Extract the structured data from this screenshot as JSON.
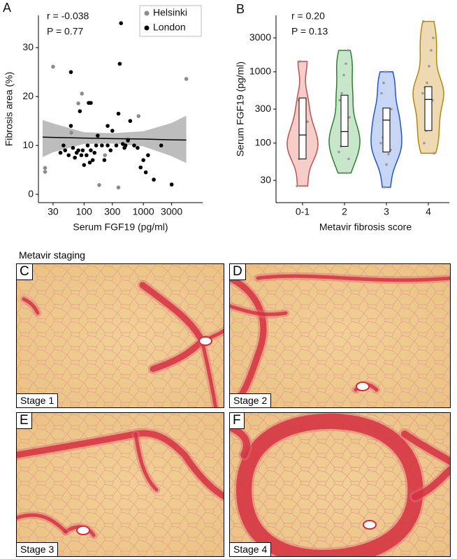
{
  "chart_data": [
    {
      "type": "scatter",
      "panel": "A",
      "x_label": "Serum FGF19 (pg/ml)",
      "y_label": "Fibrosis area (%)",
      "annotations": [
        "r = -0.038",
        "P = 0.77"
      ],
      "log_x": true,
      "xlim": [
        17,
        10000
      ],
      "xticks": [
        30,
        100,
        300,
        1000,
        3000
      ],
      "ylim": [
        -1.7,
        36.6
      ],
      "yticks": [
        0,
        10,
        20,
        30
      ],
      "grid": false,
      "legend": "upper right",
      "series": [
        {
          "name": "Helsinki",
          "color": "#8c8c8c",
          "x": [
            22,
            22,
            30,
            61,
            92,
            80,
            225,
            180,
            380,
            5300,
            830,
            550
          ],
          "y": [
            5.4,
            4.6,
            26.1,
            12.6,
            20.6,
            18.6,
            8,
            1.9,
            1.4,
            23.6,
            16,
            11.3
          ]
        },
        {
          "name": "London",
          "color": "#000000",
          "x": [
            40,
            45,
            48,
            55,
            60,
            60,
            65,
            70,
            75,
            80,
            85,
            90,
            95,
            100,
            110,
            115,
            120,
            125,
            130,
            140,
            150,
            160,
            170,
            200,
            220,
            250,
            280,
            300,
            350,
            380,
            400,
            420,
            450,
            480,
            500,
            550,
            600,
            700,
            800,
            900,
            1000,
            1100,
            1200,
            1500,
            2000,
            3000,
            250,
            130
          ],
          "y": [
            8.5,
            10,
            9,
            8,
            25,
            14,
            9.5,
            7.5,
            8.5,
            9,
            17,
            8,
            9,
            6,
            8,
            10,
            18.7,
            6.5,
            18.7,
            7,
            8.5,
            10,
            12,
            10,
            7,
            14,
            9,
            13,
            10,
            16.5,
            26.7,
            35,
            10.3,
            9.5,
            10,
            11,
            15,
            10,
            9.5,
            5.5,
            7,
            4.5,
            8,
            3,
            10,
            2,
            10,
            9
          ]
        }
      ],
      "fit": {
        "color": "#000000",
        "band_color": "#bdbdbd",
        "x": [
          20,
          30,
          100,
          300,
          1000,
          3000,
          5300
        ],
        "y": [
          11.7,
          11.65,
          11.5,
          11.4,
          11.3,
          11.15,
          11.1
        ],
        "lower": [
          7.6,
          8.6,
          10.3,
          10.4,
          9.8,
          7.8,
          6.4
        ],
        "upper": [
          15.2,
          14.5,
          12.7,
          12.5,
          12.9,
          14.6,
          16.1
        ]
      }
    },
    {
      "type": "violin",
      "panel": "B",
      "x_label": "Metavir fibrosis score",
      "y_label": "Serum FGF19 (pg/ml)",
      "annotations": [
        "r = 0.20",
        "P = 0.13"
      ],
      "log_y": true,
      "ylim": [
        14.6,
        6200
      ],
      "yticks": [
        30,
        100,
        300,
        1000,
        3000
      ],
      "categories": [
        "0-1",
        "2",
        "3",
        "4"
      ],
      "point_color": "#9a9a9a",
      "violins": [
        {
          "color": "#c0504d",
          "fill": "#f6cdc8",
          "q1": 60,
          "median": 130,
          "q3": 430,
          "points": [
            25,
            60,
            80,
            100,
            130,
            200,
            400,
            1400
          ]
        },
        {
          "color": "#2e7d32",
          "fill": "#c8e6c9",
          "q1": 90,
          "median": 145,
          "q3": 470,
          "points": [
            38,
            60,
            75,
            90,
            110,
            140,
            160,
            230,
            400,
            500,
            900,
            1300,
            2000
          ]
        },
        {
          "color": "#2255cc",
          "fill": "#c7d6f4",
          "q1": 75,
          "median": 210,
          "q3": 310,
          "points": [
            24,
            50,
            70,
            80,
            100,
            120,
            150,
            200,
            250,
            300,
            500,
            700,
            1000
          ]
        },
        {
          "color": "#b8860b",
          "fill": "#edd9b2",
          "q1": 150,
          "median": 410,
          "q3": 620,
          "points": [
            72,
            100,
            150,
            200,
            300,
            400,
            500,
            600,
            700,
            1200,
            2000,
            3000,
            5100
          ]
        }
      ]
    }
  ],
  "histology": {
    "title": "Metavir staging",
    "panels": [
      {
        "letter": "C",
        "label": "Stage 1"
      },
      {
        "letter": "D",
        "label": "Stage 2"
      },
      {
        "letter": "E",
        "label": "Stage 3"
      },
      {
        "letter": "F",
        "label": "Stage 4"
      }
    ]
  }
}
